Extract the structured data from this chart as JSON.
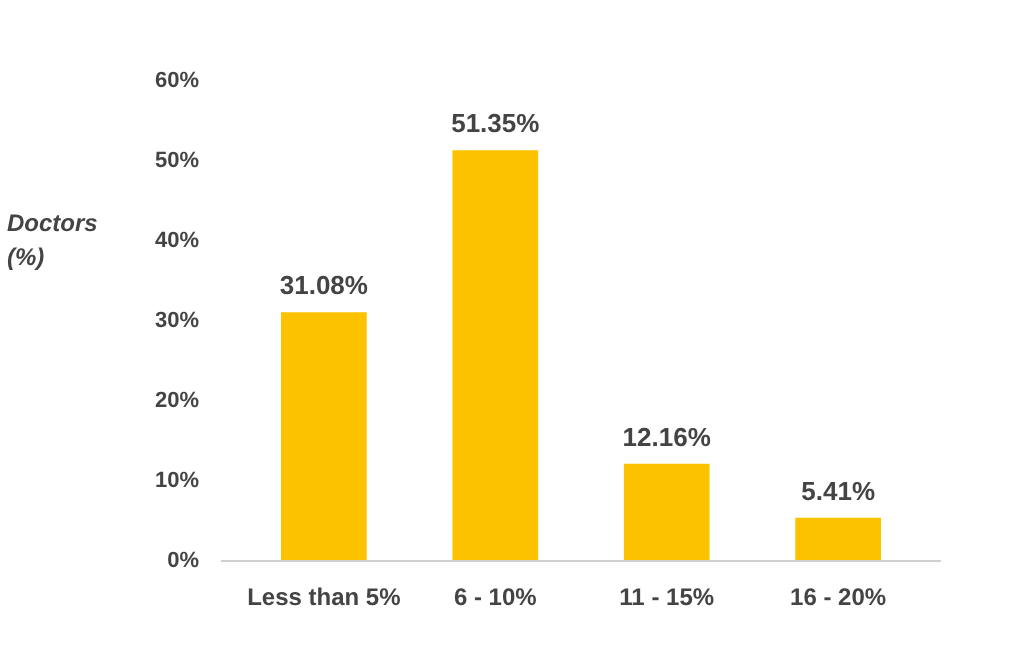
{
  "chart_data": {
    "type": "bar",
    "ylabel": "Doctors (%)",
    "categories": [
      "Less than 5%",
      "6 - 10%",
      "11 - 15%",
      "16 - 20%"
    ],
    "values": [
      31.08,
      51.35,
      12.16,
      5.41
    ],
    "color": "#fcc200",
    "ylim": [
      0,
      60
    ],
    "yticks": [
      {
        "value": 0,
        "label": "0%"
      },
      {
        "value": 10,
        "label": "10%"
      },
      {
        "value": 20,
        "label": "20%"
      },
      {
        "value": 30,
        "label": "30%"
      },
      {
        "value": 40,
        "label": "40%"
      },
      {
        "value": 50,
        "label": "50%"
      },
      {
        "value": 60,
        "label": "60%"
      }
    ],
    "value_labels": [
      "31.08%",
      "51.35%",
      "12.16%",
      "5.41%"
    ],
    "grid": false
  }
}
